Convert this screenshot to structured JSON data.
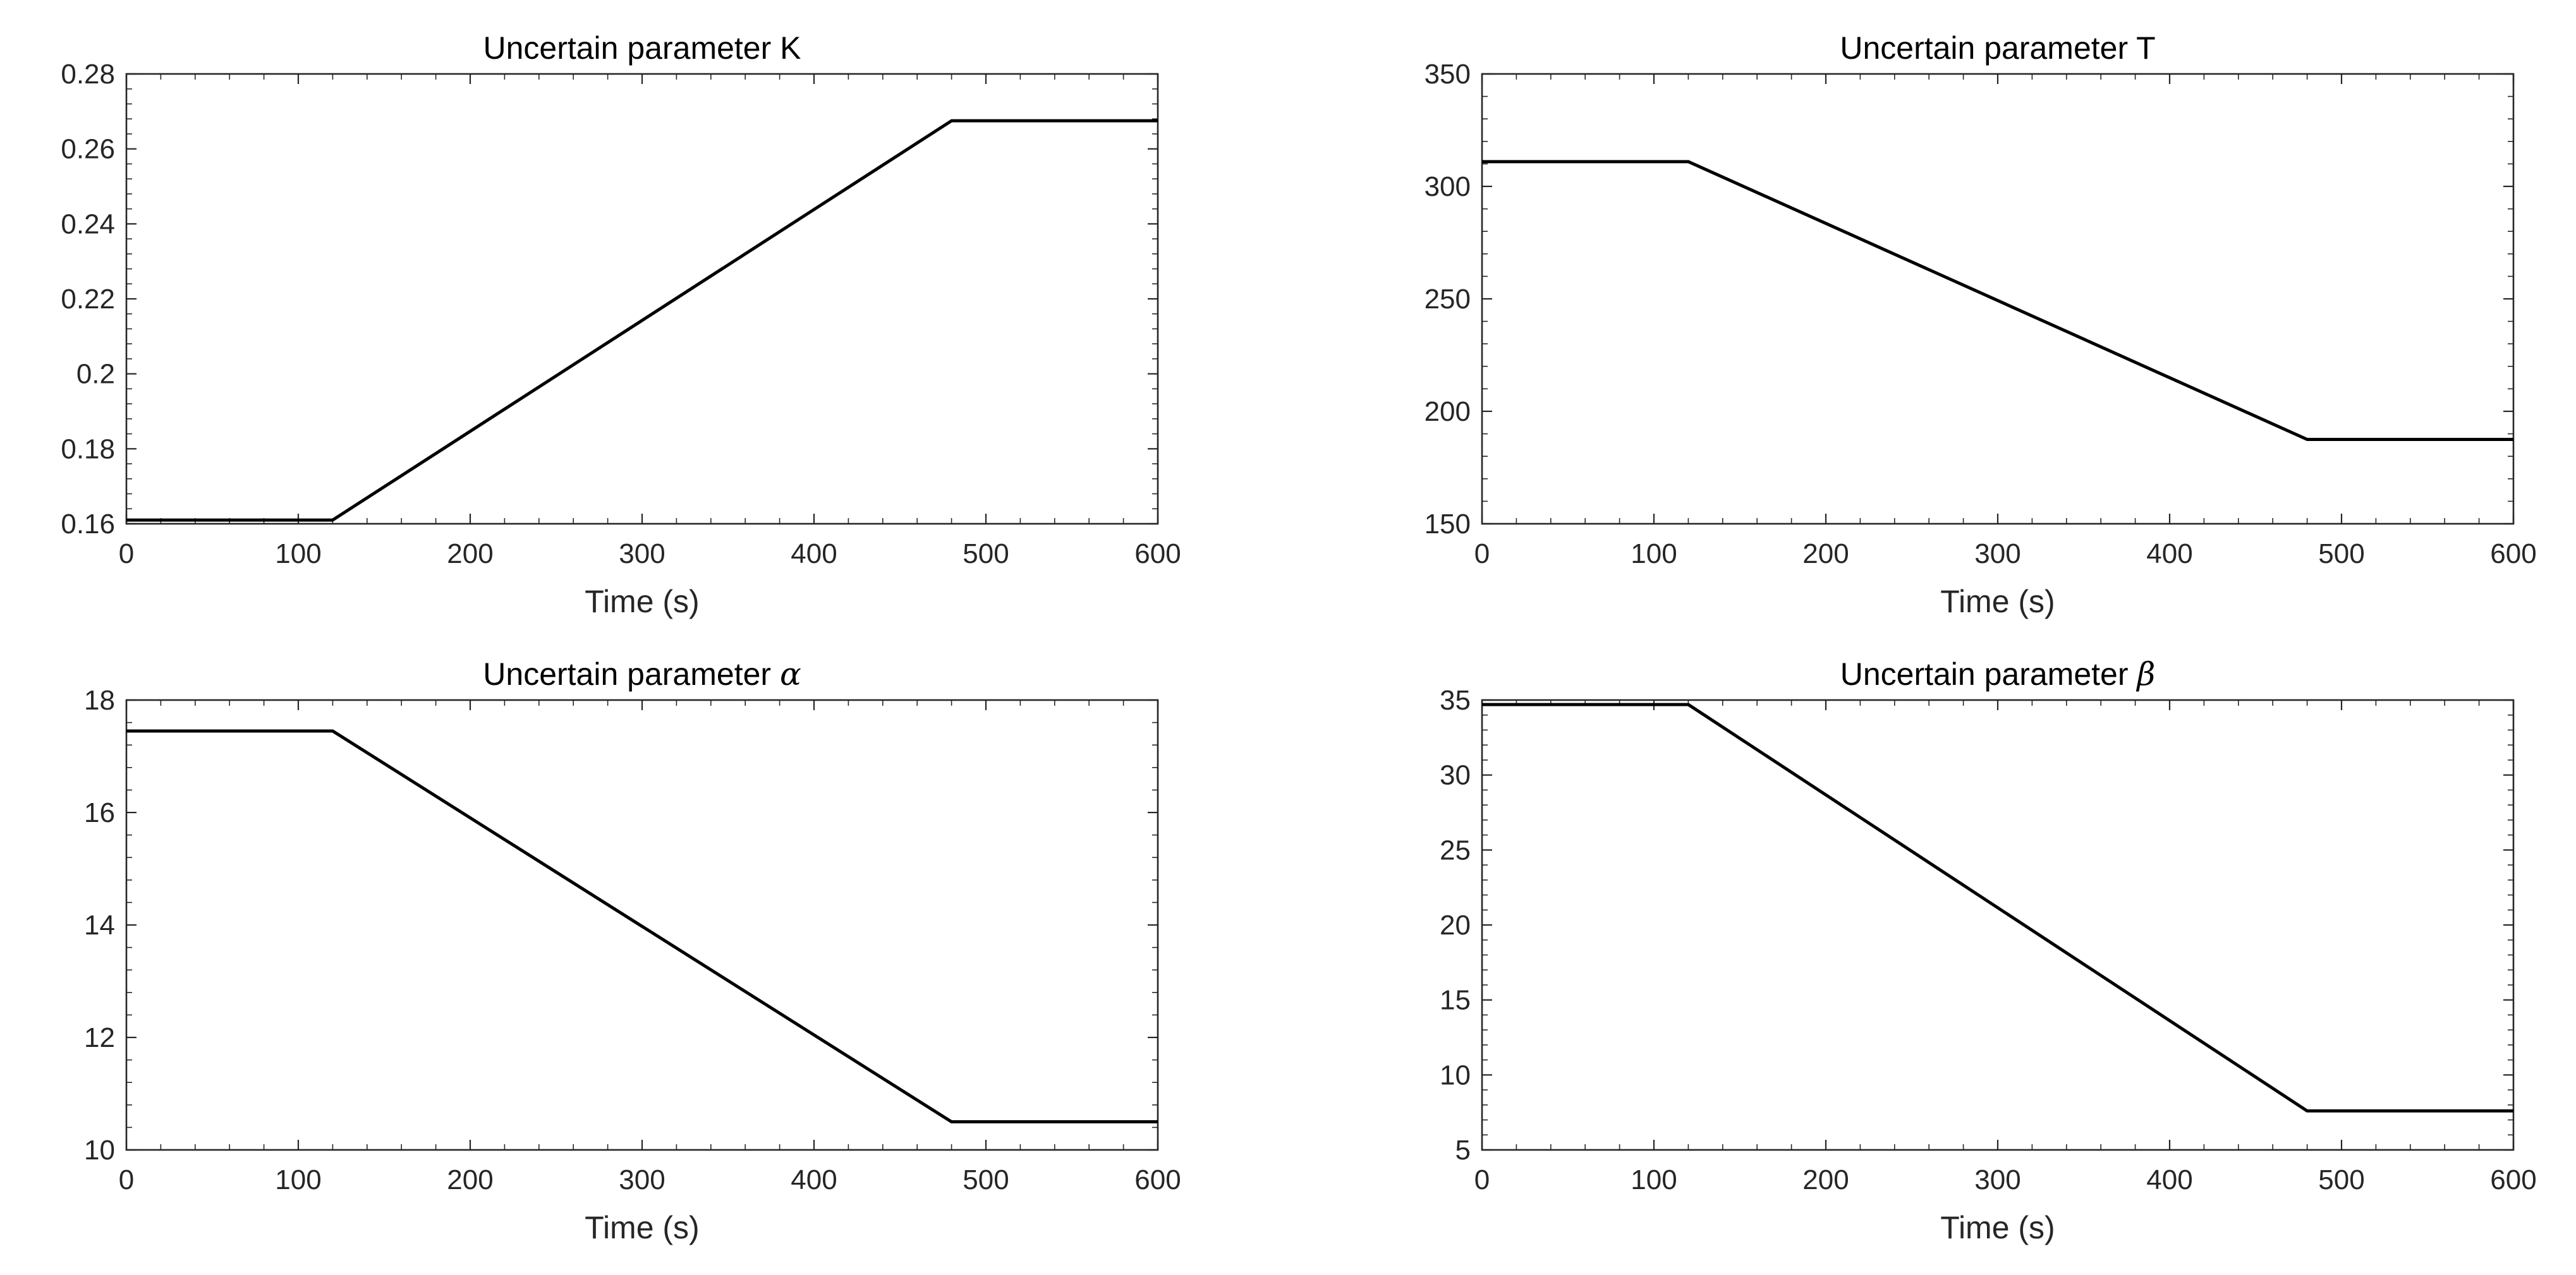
{
  "chart_data": [
    {
      "type": "line",
      "title": "Uncertain parameter K",
      "title_prefix": "Uncertain parameter ",
      "title_symbol": "K",
      "title_symbol_math": false,
      "xlabel": "Time (s)",
      "ylabel": "",
      "xlim": [
        0,
        600
      ],
      "ylim": [
        0.16,
        0.28
      ],
      "x_ticks": [
        0,
        100,
        200,
        300,
        400,
        500,
        600
      ],
      "y_ticks": [
        0.16,
        0.18,
        0.2,
        0.22,
        0.24,
        0.26,
        0.28
      ],
      "y_tick_labels": [
        "0.16",
        "0.18",
        "0.2",
        "0.22",
        "0.24",
        "0.26",
        "0.28"
      ],
      "grid": false,
      "series": [
        {
          "x": [
            0,
            120,
            480,
            600
          ],
          "y": [
            0.161,
            0.161,
            0.2675,
            0.2675
          ]
        }
      ]
    },
    {
      "type": "line",
      "title": "Uncertain parameter T",
      "title_prefix": "Uncertain parameter ",
      "title_symbol": "T",
      "title_symbol_math": false,
      "xlabel": "Time (s)",
      "ylabel": "",
      "xlim": [
        0,
        600
      ],
      "ylim": [
        150,
        350
      ],
      "x_ticks": [
        0,
        100,
        200,
        300,
        400,
        500,
        600
      ],
      "y_ticks": [
        150,
        200,
        250,
        300,
        350
      ],
      "y_tick_labels": [
        "150",
        "200",
        "250",
        "300",
        "350"
      ],
      "grid": false,
      "series": [
        {
          "x": [
            0,
            120,
            480,
            600
          ],
          "y": [
            311,
            311,
            187.5,
            187.5
          ]
        }
      ]
    },
    {
      "type": "line",
      "title": "Uncertain parameter α",
      "title_prefix": "Uncertain parameter ",
      "title_symbol": "α",
      "title_symbol_math": true,
      "xlabel": "Time (s)",
      "ylabel": "",
      "xlim": [
        0,
        600
      ],
      "ylim": [
        10,
        18
      ],
      "x_ticks": [
        0,
        100,
        200,
        300,
        400,
        500,
        600
      ],
      "y_ticks": [
        10,
        12,
        14,
        16,
        18
      ],
      "y_tick_labels": [
        "10",
        "12",
        "14",
        "16",
        "18"
      ],
      "grid": false,
      "series": [
        {
          "x": [
            0,
            120,
            480,
            600
          ],
          "y": [
            17.45,
            17.45,
            10.5,
            10.5
          ]
        }
      ]
    },
    {
      "type": "line",
      "title": "Uncertain parameter β",
      "title_prefix": "Uncertain parameter ",
      "title_symbol": "β",
      "title_symbol_math": true,
      "xlabel": "Time (s)",
      "ylabel": "",
      "xlim": [
        0,
        600
      ],
      "ylim": [
        5,
        35
      ],
      "x_ticks": [
        0,
        100,
        200,
        300,
        400,
        500,
        600
      ],
      "y_ticks": [
        5,
        10,
        15,
        20,
        25,
        30,
        35
      ],
      "y_tick_labels": [
        "5",
        "10",
        "15",
        "20",
        "25",
        "30",
        "35"
      ],
      "grid": false,
      "series": [
        {
          "x": [
            0,
            120,
            480,
            600
          ],
          "y": [
            34.7,
            34.7,
            7.6,
            7.6
          ]
        }
      ]
    }
  ]
}
